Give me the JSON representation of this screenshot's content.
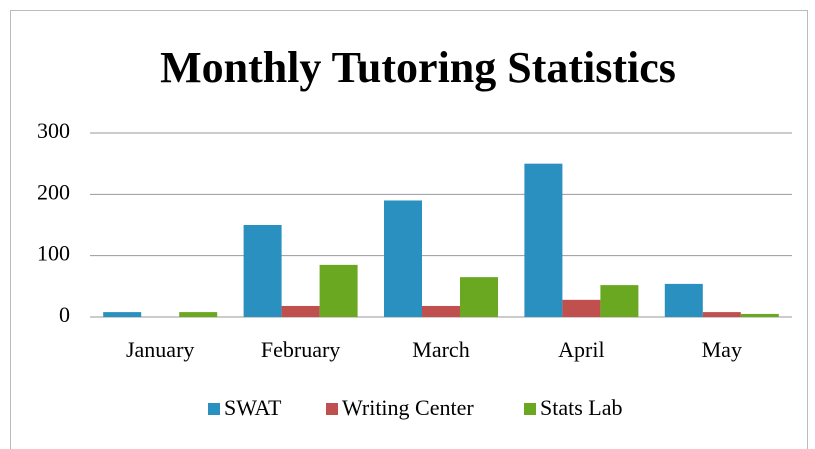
{
  "chart_data": {
    "type": "bar",
    "title": "Monthly Tutoring Statistics",
    "categories": [
      "January",
      "February",
      "March",
      "April",
      "May"
    ],
    "series": [
      {
        "name": "SWAT",
        "color": "#2a90c0",
        "values": [
          8,
          150,
          190,
          250,
          54
        ]
      },
      {
        "name": "Writing Center",
        "color": "#c0504d",
        "values": [
          0,
          18,
          18,
          28,
          8
        ]
      },
      {
        "name": "Stats Lab",
        "color": "#6aa822",
        "values": [
          8,
          85,
          65,
          52,
          5
        ]
      }
    ],
    "ylim": [
      0,
      300
    ],
    "yticks": [
      0,
      100,
      200,
      300
    ],
    "grid": true,
    "legend": "bottom"
  }
}
